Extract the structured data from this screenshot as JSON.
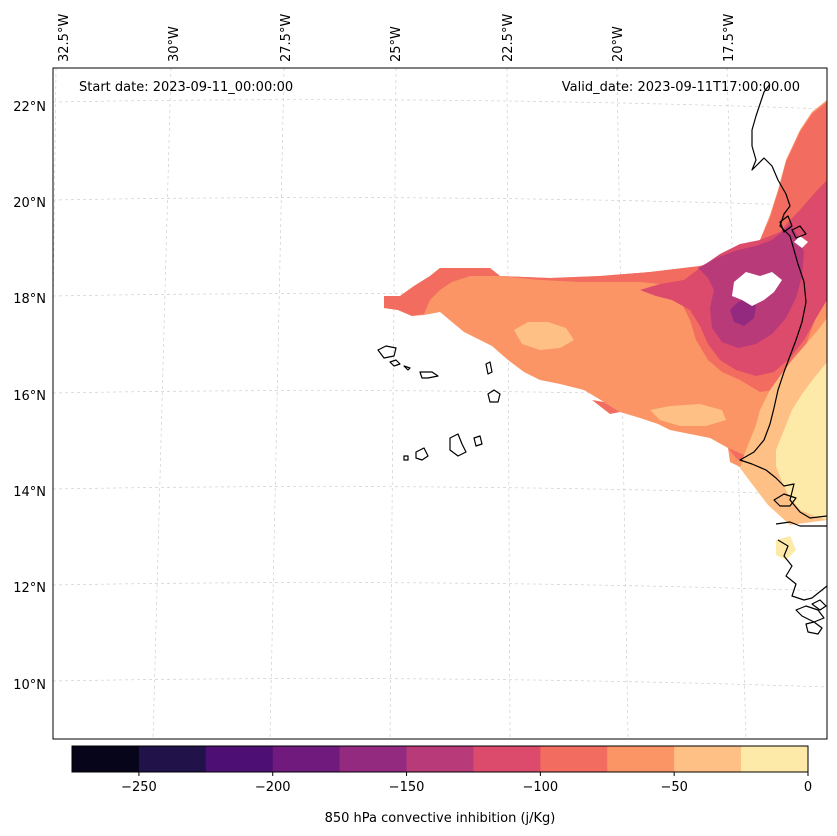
{
  "map": {
    "start_label": "Start date: 2023-09-11_00:00:00",
    "valid_label": "Valid_date: 2023-09-11T17:00:00.00",
    "lon_labels": [
      "32.5°W",
      "30°W",
      "27.5°W",
      "25°W",
      "22.5°W",
      "20°W",
      "17.5°W"
    ],
    "lat_labels": [
      "22°N",
      "20°N",
      "18°N",
      "16°N",
      "14°N",
      "12°N",
      "10°N"
    ],
    "variable": "850 hPa convective inhibition",
    "region": "West Africa coast and Cape Verde islands"
  },
  "colorbar": {
    "label": "850 hPa convective inhibition (j/Kg)",
    "ticks": [
      "−250",
      "−200",
      "−150",
      "−100",
      "−50",
      "0"
    ],
    "levels": [
      -275,
      -250,
      -225,
      -200,
      -175,
      -150,
      -125,
      -100,
      -75,
      -50,
      -25,
      0
    ],
    "colors": [
      "#06051a",
      "#21124a",
      "#4d0f73",
      "#711a7e",
      "#932a80",
      "#b83a79",
      "#dc4a6c",
      "#f26c5f",
      "#fb9566",
      "#fec085",
      "#feeaa8"
    ]
  }
}
